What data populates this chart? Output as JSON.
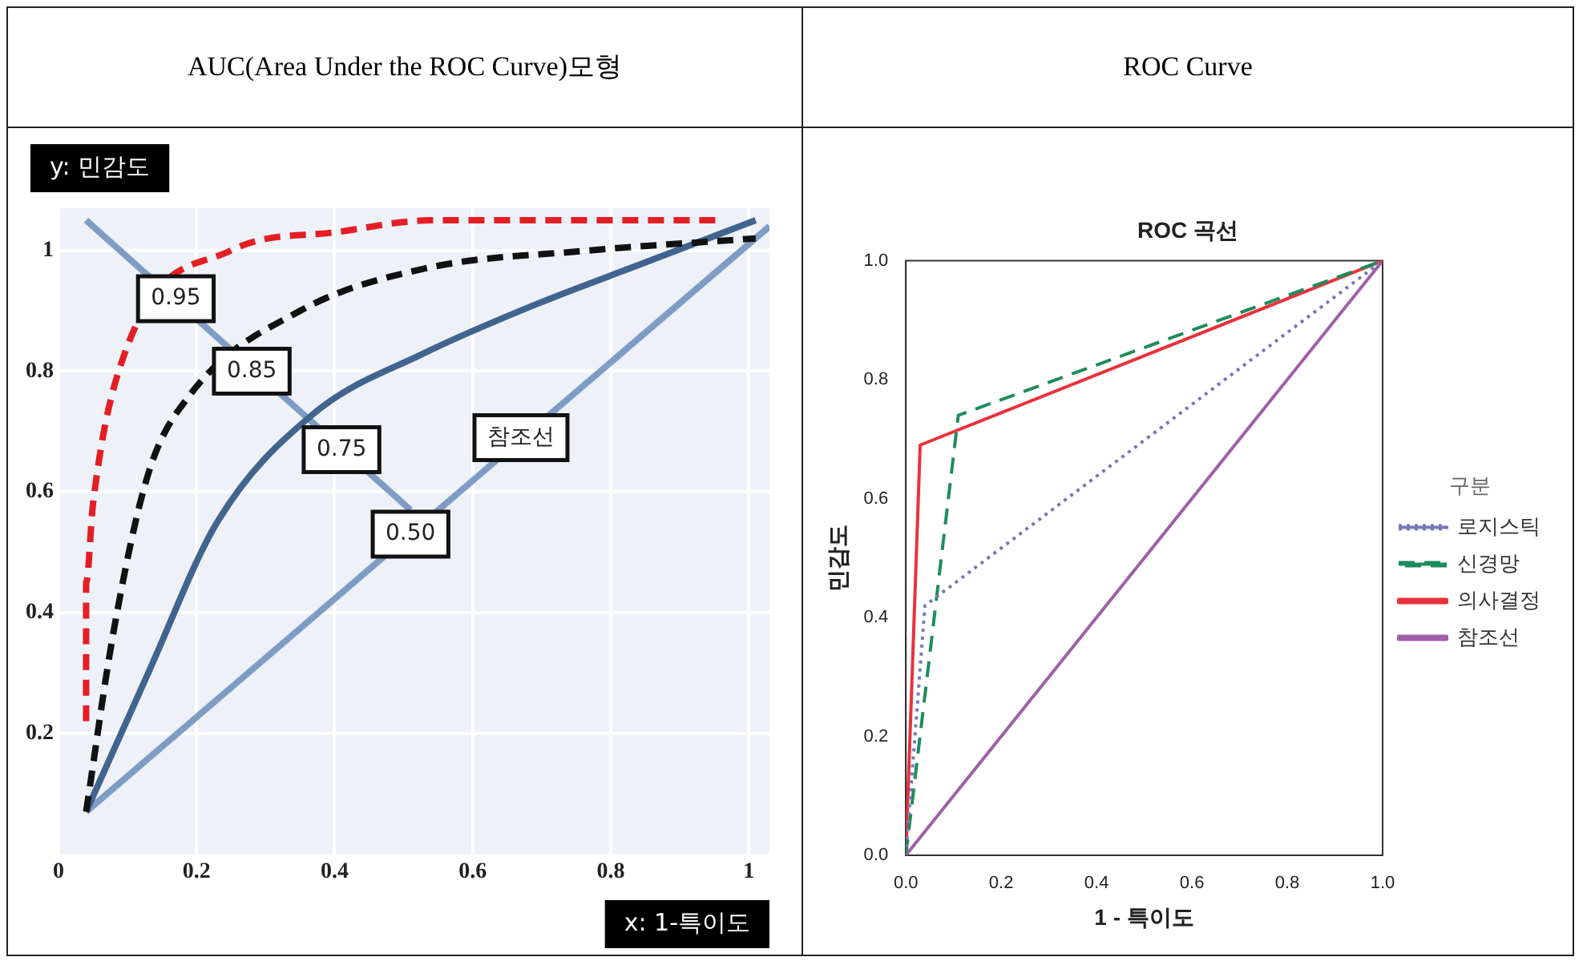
{
  "chart_data": [
    {
      "type": "line",
      "title": "AUC(Area Under the ROC Curve)모형",
      "xlabel": "x: 1-특이도",
      "ylabel": "y: 민감도",
      "xlim": [
        0,
        1.03
      ],
      "ylim": [
        0,
        1.07
      ],
      "xticks": [
        0,
        0.2,
        0.4,
        0.6,
        0.8,
        1
      ],
      "yticks": [
        0.2,
        0.4,
        0.6,
        0.8,
        1
      ],
      "grid": true,
      "legend": false,
      "marker": "none",
      "series": [
        {
          "color": "#e31e24",
          "line_style": "dashed",
          "x": [
            0.04,
            0.04,
            0.05,
            0.09,
            0.25,
            0.4,
            0.54,
            0.89,
            0.96
          ],
          "values": [
            0.22,
            0.45,
            0.58,
            0.81,
            1.0,
            1.03,
            1.05,
            1.05,
            1.05
          ]
        },
        {
          "color": "#111111",
          "line_style": "dashed",
          "x": [
            0.04,
            0.08,
            0.13,
            0.19,
            0.35,
            0.53,
            0.77,
            1.01
          ],
          "values": [
            0.07,
            0.37,
            0.63,
            0.76,
            0.9,
            0.97,
            1.0,
            1.02
          ]
        },
        {
          "color": "#41648f",
          "line_style": "solid",
          "x": [
            0.04,
            0.13,
            0.23,
            0.37,
            0.53,
            0.69,
            0.85,
            1.01
          ],
          "values": [
            0.07,
            0.3,
            0.55,
            0.73,
            0.83,
            0.91,
            0.98,
            1.05
          ]
        },
        {
          "color": "#7f9cc4",
          "line_style": "solid",
          "x": [
            0.04,
            1.03
          ],
          "values": [
            0.07,
            1.04
          ]
        },
        {
          "color": "#7f9cc4",
          "line_style": "solid",
          "x": [
            0.04,
            0.51
          ],
          "values": [
            1.05,
            0.57
          ]
        }
      ],
      "annotations": [
        {
          "text": "0.95",
          "x": 0.17,
          "y": 0.92
        },
        {
          "text": "0.85",
          "x": 0.28,
          "y": 0.8
        },
        {
          "text": "0.75",
          "x": 0.41,
          "y": 0.67
        },
        {
          "text": "0.50",
          "x": 0.51,
          "y": 0.53
        },
        {
          "text": "참조선",
          "x": 0.67,
          "y": 0.69
        }
      ]
    },
    {
      "type": "line",
      "title": "ROC Curve",
      "subtitle": "ROC 곡선",
      "xlabel": "1 - 특이도",
      "ylabel": "민감도",
      "xlim": [
        0,
        1
      ],
      "ylim": [
        0,
        1
      ],
      "xticks": [
        {
          "value": 0,
          "label": "0.0"
        },
        0.2,
        0.4,
        0.6,
        0.8,
        {
          "value": 1,
          "label": "1.0"
        }
      ],
      "yticks": [
        {
          "value": 0,
          "label": "0.0"
        },
        0.2,
        0.4,
        0.6,
        0.8,
        {
          "value": 1,
          "label": "1.0"
        }
      ],
      "grid": false,
      "legend": "right",
      "legend_title": "구분",
      "marker": "none",
      "series": [
        {
          "name": "로지스틱",
          "color": "#7878b8",
          "line_style": "dotted",
          "x": [
            0,
            0.04,
            1
          ],
          "values": [
            0,
            0.42,
            1
          ]
        },
        {
          "name": "신경망",
          "color": "#1e8c5a",
          "line_style": "dashed",
          "x": [
            0,
            0.11,
            1
          ],
          "values": [
            0,
            0.74,
            1
          ]
        },
        {
          "name": "의사결정",
          "color": "#e8323c",
          "line_style": "solid",
          "x": [
            0,
            0.03,
            1
          ],
          "values": [
            0,
            0.69,
            1
          ]
        },
        {
          "name": "참조선",
          "color": "#a060a8",
          "line_style": "solid",
          "x": [
            0,
            1
          ],
          "values": [
            0,
            1
          ]
        }
      ]
    }
  ]
}
